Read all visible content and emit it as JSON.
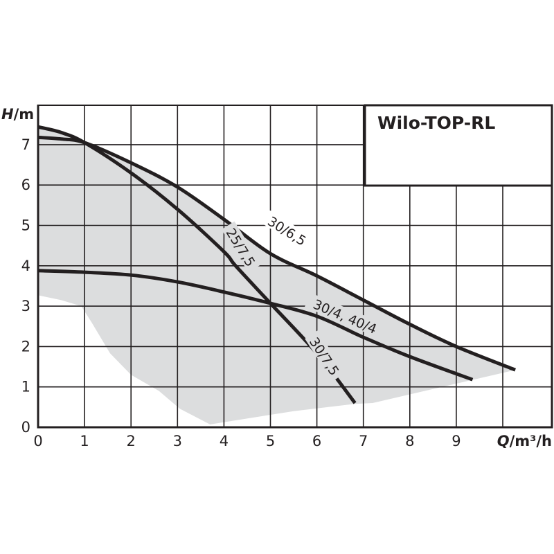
{
  "chart_data": {
    "type": "line",
    "title": "Wilo-TOP-RL",
    "xlabel": "Q/m³/h",
    "xlabel_parts": {
      "var": "Q",
      "unit": "/m³/h"
    },
    "ylabel": "H/m",
    "ylabel_parts": {
      "var": "H",
      "unit": "/m"
    },
    "xlim": [
      0,
      11
    ],
    "ylim": [
      0,
      8
    ],
    "x_ticks": [
      0,
      1,
      2,
      3,
      4,
      5,
      6,
      7,
      8,
      9
    ],
    "y_ticks": [
      0,
      1,
      2,
      3,
      4,
      5,
      6,
      7
    ],
    "x_gridlines": [
      1,
      2,
      3,
      4,
      5,
      6,
      7,
      8,
      9,
      10
    ],
    "y_gridlines": [
      1,
      2,
      3,
      4,
      5,
      6,
      7
    ],
    "grid": true,
    "legend": "inline curve labels",
    "series": [
      {
        "name": "25/7,5 & 30/7,5",
        "labels": [
          "25/7,5",
          "30/7,5"
        ],
        "x": [
          0,
          0.5,
          1,
          2,
          3,
          4,
          4.25,
          5,
          6,
          6.82
        ],
        "y": [
          7.44,
          7.3,
          7.05,
          6.3,
          5.4,
          4.35,
          4.0,
          3.07,
          1.83,
          0.6
        ]
      },
      {
        "name": "30/6,5",
        "labels": [
          "30/6,5"
        ],
        "x": [
          0,
          0.5,
          1,
          2,
          3,
          4,
          5,
          6,
          7,
          8,
          9,
          10.27
        ],
        "y": [
          7.18,
          7.14,
          7.05,
          6.55,
          5.95,
          5.15,
          4.3,
          3.75,
          3.15,
          2.55,
          2.0,
          1.42
        ]
      },
      {
        "name": "30/4, 40/4",
        "labels": [
          "30/4, 40/4"
        ],
        "x": [
          0,
          1,
          2,
          3,
          4,
          5,
          6,
          7,
          8,
          9.35
        ],
        "y": [
          3.88,
          3.84,
          3.77,
          3.6,
          3.35,
          3.07,
          2.75,
          2.23,
          1.75,
          1.18
        ]
      }
    ],
    "shaded_region": {
      "color": "#dcddde",
      "polygon": [
        [
          0,
          7.44
        ],
        [
          0.5,
          7.3
        ],
        [
          1,
          7.05
        ],
        [
          2,
          6.55
        ],
        [
          3,
          5.95
        ],
        [
          4,
          5.15
        ],
        [
          5,
          4.3
        ],
        [
          6,
          3.75
        ],
        [
          7,
          3.15
        ],
        [
          8,
          2.55
        ],
        [
          9,
          2.0
        ],
        [
          10.27,
          1.42
        ],
        [
          7.2,
          0.6
        ],
        [
          6.82,
          0.58
        ],
        [
          5.5,
          0.4
        ],
        [
          3.7,
          0.07
        ],
        [
          3.05,
          0.46
        ],
        [
          2.6,
          0.9
        ],
        [
          2.0,
          1.3
        ],
        [
          1.55,
          1.83
        ],
        [
          1.15,
          2.6
        ],
        [
          0.93,
          3.0
        ],
        [
          0.5,
          3.15
        ],
        [
          0,
          3.27
        ]
      ]
    },
    "curve_labels": [
      {
        "text": "30/6,5",
        "x": 5.35,
        "y": 4.85,
        "angle": 32,
        "bg": "#ffffff"
      },
      {
        "text": "25/7,5",
        "x": 4.35,
        "y": 4.45,
        "angle": 58,
        "bg": "#dcddde"
      },
      {
        "text": "30/4, 40/4",
        "x": 6.6,
        "y": 2.73,
        "angle": 23,
        "bg": "#dcddde"
      },
      {
        "text": "30/7,5",
        "x": 6.15,
        "y": 1.75,
        "angle": 57,
        "bg": "#dcddde"
      }
    ],
    "colors": {
      "curve": "#231f20",
      "grid": "#231f20",
      "shade": "#dcddde",
      "background": "#ffffff"
    }
  }
}
